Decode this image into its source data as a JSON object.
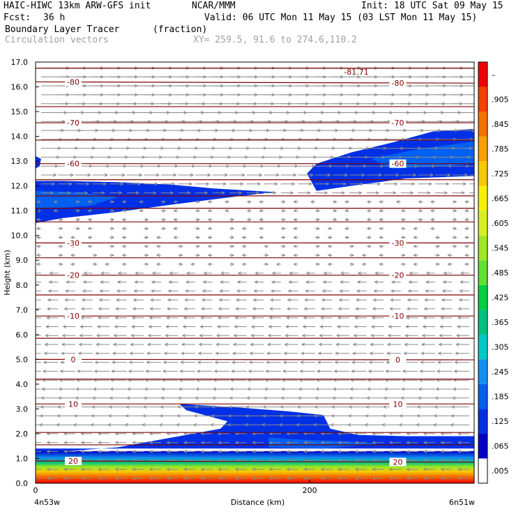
{
  "header": {
    "model": "HAIC-HIWC 13km ARW-GFS init",
    "center": "NCAR/MMM",
    "init": "Init: 18 UTC Sat 09 May 15",
    "fcst_label": "Fcst:",
    "fcst_value": "36 h",
    "valid": "Valid: 06 UTC Mon 11 May 15 (03 LST Mon 11 May 15)",
    "field1": "Boundary Layer Tracer",
    "field1_units": "(fraction)",
    "field2": "Circulation vectors",
    "xy": "XY= 259.5, 91.6 to 274.6,110.2"
  },
  "chart_data": {
    "type": "heatmap",
    "xlabel": "Distance (km)",
    "ylabel": "Height (km)",
    "xlim": [
      0,
      320
    ],
    "ylim": [
      0.0,
      17.0
    ],
    "x_ticks": [
      {
        "v": 0,
        "label": "0"
      },
      {
        "v": 200,
        "label": "200"
      }
    ],
    "x_end_labels": {
      "left": "4n53w",
      "right": "6n51w"
    },
    "y_ticks": [
      "0.0",
      "1.0",
      "2.0",
      "3.0",
      "4.0",
      "5.0",
      "6.0",
      "7.0",
      "8.0",
      "9.0",
      "10.0",
      "11.0",
      "12.0",
      "13.0",
      "14.0",
      "15.0",
      "16.0",
      "17.0"
    ],
    "colorbar": {
      "labels": [
        ".005",
        ".065",
        ".125",
        ".185",
        ".245",
        ".305",
        ".365",
        ".425",
        ".485",
        ".545",
        ".605",
        ".665",
        ".725",
        ".785",
        ".845",
        ".905",
        "–"
      ],
      "colors": [
        "#ffffff",
        "#0000c8",
        "#0030e6",
        "#0060f0",
        "#1090f0",
        "#00c8c8",
        "#00c080",
        "#00d040",
        "#60e030",
        "#a0e820",
        "#d8f020",
        "#f8f000",
        "#f8c800",
        "#f8a000",
        "#f87000",
        "#f84000",
        "#f00000"
      ]
    },
    "isotherms": [
      {
        "label": "-80",
        "yl": 16.2,
        "yr": 16.15
      },
      {
        "label": "-70",
        "yl": 14.55,
        "yr": 14.55
      },
      {
        "label": "-60",
        "yl": 12.9,
        "yr": 12.9
      },
      {
        "label": "-30",
        "yl": 9.7,
        "yr": 9.7
      },
      {
        "label": "-20",
        "yl": 8.4,
        "yr": 8.4
      },
      {
        "label": "-10",
        "yl": 6.75,
        "yr": 6.75
      },
      {
        "label": "0",
        "yl": 5.0,
        "yr": 4.98
      },
      {
        "label": "10",
        "yl": 3.2,
        "yr": 3.2
      },
      {
        "label": "20",
        "yl": 0.9,
        "yr": 0.85
      }
    ],
    "unlabeled_isotherms": [
      16.75,
      15.2,
      13.85,
      12.25,
      11.6,
      11.1,
      10.55,
      9.1,
      7.6,
      5.85,
      4.2,
      2.05,
      1.55
    ],
    "min_label": {
      "text": "-81.71",
      "x": 225,
      "y": 16.6
    },
    "tracer_regions": [
      {
        "name": "upper-left",
        "color": "#0030e6",
        "points": [
          [
            0,
            12.2
          ],
          [
            20,
            12.2
          ],
          [
            60,
            12.15
          ],
          [
            100,
            12.05
          ],
          [
            130,
            11.9
          ],
          [
            175,
            11.75
          ],
          [
            150,
            11.6
          ],
          [
            100,
            11.25
          ],
          [
            60,
            10.95
          ],
          [
            20,
            10.7
          ],
          [
            0,
            10.5
          ]
        ]
      },
      {
        "name": "upper-left-core",
        "color": "#0060f0",
        "points": [
          [
            0,
            11.8
          ],
          [
            30,
            11.75
          ],
          [
            60,
            11.55
          ],
          [
            40,
            11.2
          ],
          [
            15,
            11.1
          ],
          [
            0,
            11.1
          ]
        ]
      },
      {
        "name": "upper-left-nub",
        "color": "#0030e6",
        "points": [
          [
            0,
            13.2
          ],
          [
            4,
            13.1
          ],
          [
            3,
            12.8
          ],
          [
            0,
            12.7
          ]
        ]
      },
      {
        "name": "upper-right",
        "color": "#0030e6",
        "points": [
          [
            320,
            14.3
          ],
          [
            290,
            14.2
          ],
          [
            260,
            13.75
          ],
          [
            230,
            13.35
          ],
          [
            205,
            12.9
          ],
          [
            198,
            12.5
          ],
          [
            205,
            11.8
          ],
          [
            230,
            12.0
          ],
          [
            270,
            12.3
          ],
          [
            320,
            12.4
          ]
        ]
      },
      {
        "name": "upper-right-core",
        "color": "#0060f0",
        "points": [
          [
            320,
            13.8
          ],
          [
            280,
            13.5
          ],
          [
            245,
            13.1
          ],
          [
            260,
            12.7
          ],
          [
            300,
            12.8
          ],
          [
            320,
            12.9
          ]
        ]
      },
      {
        "name": "lower-band",
        "color": "#0030e6",
        "points": [
          [
            105,
            3.2
          ],
          [
            150,
            3.05
          ],
          [
            185,
            2.9
          ],
          [
            210,
            2.75
          ],
          [
            215,
            2.2
          ],
          [
            235,
            1.95
          ],
          [
            270,
            1.9
          ],
          [
            320,
            1.9
          ],
          [
            320,
            1.4
          ],
          [
            0,
            1.4
          ],
          [
            0,
            1.2
          ],
          [
            60,
            1.45
          ],
          [
            105,
            1.9
          ],
          [
            125,
            2.1
          ],
          [
            135,
            2.2
          ],
          [
            140,
            2.5
          ],
          [
            110,
            2.95
          ]
        ]
      },
      {
        "name": "lower-core",
        "color": "#0060f0",
        "points": [
          [
            170,
            1.85
          ],
          [
            195,
            1.75
          ],
          [
            225,
            1.7
          ],
          [
            250,
            1.6
          ],
          [
            210,
            1.4
          ],
          [
            170,
            1.45
          ]
        ]
      }
    ],
    "boundary_layer_gradient": [
      {
        "y": 1.3,
        "color": "#0000c8"
      },
      {
        "y": 1.15,
        "color": "#1090f0"
      },
      {
        "y": 1.05,
        "color": "#00c080"
      },
      {
        "y": 0.95,
        "color": "#a0e820"
      },
      {
        "y": 0.85,
        "color": "#f8c800"
      },
      {
        "y": 0.75,
        "color": "#f87000"
      },
      {
        "y": 0.6,
        "color": "#f00000"
      }
    ]
  }
}
